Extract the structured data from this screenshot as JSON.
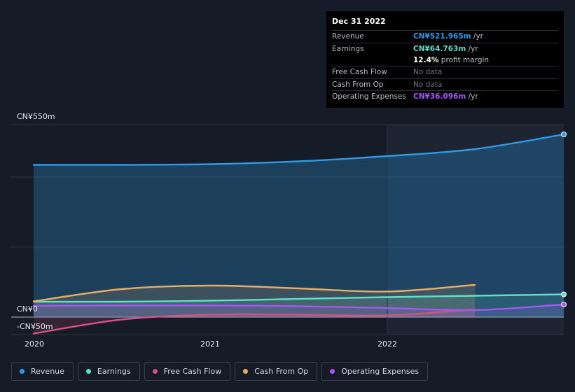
{
  "tooltip": {
    "date": "Dec 31 2022",
    "rows": [
      {
        "label": "Revenue",
        "value": "CN¥521.965m",
        "suffix": " /yr",
        "color": "#2f9ae6"
      },
      {
        "label": "Earnings",
        "value": "CN¥64.763m",
        "suffix": " /yr",
        "color": "#5fe0c8",
        "sub_value": "12.4%",
        "sub_text": " profit margin"
      },
      {
        "label": "Free Cash Flow",
        "value": "No data"
      },
      {
        "label": "Cash From Op",
        "value": "No data"
      },
      {
        "label": "Operating Expenses",
        "value": "CN¥36.096m",
        "suffix": " /yr",
        "color": "#a855f7"
      }
    ]
  },
  "chart_data": {
    "type": "area",
    "y_tick_labels": [
      "CN¥550m",
      "CN¥0",
      "-CN¥50m"
    ],
    "x_tick_labels": [
      "2020",
      "2021",
      "2022"
    ],
    "ylim": [
      -50,
      550
    ],
    "grid": true,
    "legend_placement": "bottom-left",
    "series": [
      {
        "name": "Revenue",
        "color": "#2f9ae6",
        "fill": true,
        "points": [
          [
            "2019-12-31",
            435
          ],
          [
            "2020-06-30",
            435
          ],
          [
            "2021-01-01",
            437
          ],
          [
            "2021-06-30",
            445
          ],
          [
            "2021-12-31",
            460
          ],
          [
            "2022-06-30",
            480
          ],
          [
            "2022-12-31",
            522
          ]
        ]
      },
      {
        "name": "Earnings",
        "color": "#5fe0c8",
        "fill": true,
        "points": [
          [
            "2019-12-31",
            44
          ],
          [
            "2020-06-30",
            44
          ],
          [
            "2021-01-01",
            47
          ],
          [
            "2021-06-30",
            52
          ],
          [
            "2021-12-31",
            57
          ],
          [
            "2022-06-30",
            61
          ],
          [
            "2022-12-31",
            65
          ]
        ]
      },
      {
        "name": "Free Cash Flow",
        "color": "#d64f87",
        "fill": true,
        "points": [
          [
            "2019-12-31",
            -47
          ],
          [
            "2020-06-30",
            -7
          ],
          [
            "2021-01-01",
            7
          ],
          [
            "2021-06-30",
            7
          ],
          [
            "2021-12-31",
            5
          ],
          [
            "2022-06-30",
            22
          ]
        ]
      },
      {
        "name": "Cash From Op",
        "color": "#e9ad62",
        "fill": true,
        "points": [
          [
            "2019-12-31",
            45
          ],
          [
            "2020-06-30",
            80
          ],
          [
            "2021-01-01",
            90
          ],
          [
            "2021-06-30",
            82
          ],
          [
            "2021-12-31",
            73
          ],
          [
            "2022-06-30",
            92
          ]
        ]
      },
      {
        "name": "Operating Expenses",
        "color": "#a855f7",
        "fill": true,
        "points": [
          [
            "2019-12-31",
            32
          ],
          [
            "2020-06-30",
            33
          ],
          [
            "2021-01-01",
            33
          ],
          [
            "2021-06-30",
            31
          ],
          [
            "2021-12-31",
            26
          ],
          [
            "2022-06-30",
            20
          ],
          [
            "2022-12-31",
            36
          ]
        ]
      }
    ]
  },
  "legend": [
    {
      "label": "Revenue",
      "color": "#2f9ae6"
    },
    {
      "label": "Earnings",
      "color": "#5fe0c8"
    },
    {
      "label": "Free Cash Flow",
      "color": "#d64f87"
    },
    {
      "label": "Cash From Op",
      "color": "#e9ad62"
    },
    {
      "label": "Operating Expenses",
      "color": "#a855f7"
    }
  ]
}
